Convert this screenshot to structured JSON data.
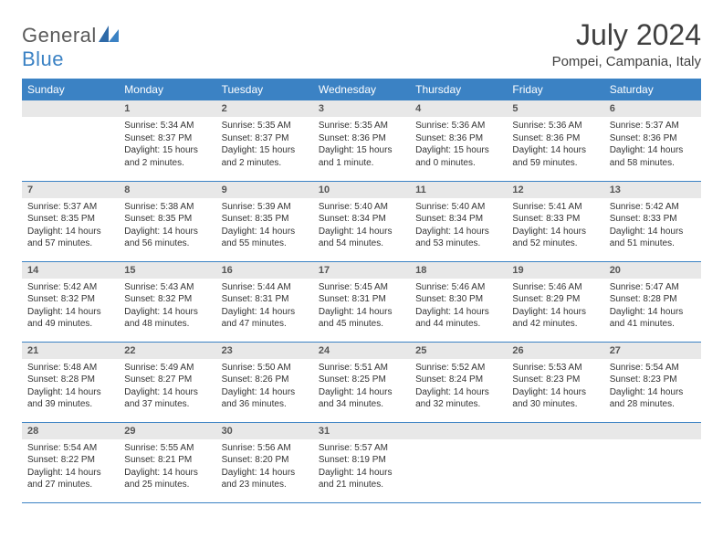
{
  "brand": {
    "part1": "General",
    "part2": "Blue"
  },
  "title": "July 2024",
  "location": "Pompei, Campania, Italy",
  "colors": {
    "header_bg": "#3b82c4",
    "header_text": "#ffffff",
    "daynum_bg": "#e8e8e8",
    "text": "#333333",
    "title_text": "#404040"
  },
  "typography": {
    "title_fontsize": 32,
    "location_fontsize": 15,
    "dow_fontsize": 12,
    "cell_fontsize": 10
  },
  "days_of_week": [
    "Sunday",
    "Monday",
    "Tuesday",
    "Wednesday",
    "Thursday",
    "Friday",
    "Saturday"
  ],
  "weeks": [
    [
      {
        "num": "",
        "sunrise": "",
        "sunset": "",
        "daylight": ""
      },
      {
        "num": "1",
        "sunrise": "Sunrise: 5:34 AM",
        "sunset": "Sunset: 8:37 PM",
        "daylight": "Daylight: 15 hours and 2 minutes."
      },
      {
        "num": "2",
        "sunrise": "Sunrise: 5:35 AM",
        "sunset": "Sunset: 8:37 PM",
        "daylight": "Daylight: 15 hours and 2 minutes."
      },
      {
        "num": "3",
        "sunrise": "Sunrise: 5:35 AM",
        "sunset": "Sunset: 8:36 PM",
        "daylight": "Daylight: 15 hours and 1 minute."
      },
      {
        "num": "4",
        "sunrise": "Sunrise: 5:36 AM",
        "sunset": "Sunset: 8:36 PM",
        "daylight": "Daylight: 15 hours and 0 minutes."
      },
      {
        "num": "5",
        "sunrise": "Sunrise: 5:36 AM",
        "sunset": "Sunset: 8:36 PM",
        "daylight": "Daylight: 14 hours and 59 minutes."
      },
      {
        "num": "6",
        "sunrise": "Sunrise: 5:37 AM",
        "sunset": "Sunset: 8:36 PM",
        "daylight": "Daylight: 14 hours and 58 minutes."
      }
    ],
    [
      {
        "num": "7",
        "sunrise": "Sunrise: 5:37 AM",
        "sunset": "Sunset: 8:35 PM",
        "daylight": "Daylight: 14 hours and 57 minutes."
      },
      {
        "num": "8",
        "sunrise": "Sunrise: 5:38 AM",
        "sunset": "Sunset: 8:35 PM",
        "daylight": "Daylight: 14 hours and 56 minutes."
      },
      {
        "num": "9",
        "sunrise": "Sunrise: 5:39 AM",
        "sunset": "Sunset: 8:35 PM",
        "daylight": "Daylight: 14 hours and 55 minutes."
      },
      {
        "num": "10",
        "sunrise": "Sunrise: 5:40 AM",
        "sunset": "Sunset: 8:34 PM",
        "daylight": "Daylight: 14 hours and 54 minutes."
      },
      {
        "num": "11",
        "sunrise": "Sunrise: 5:40 AM",
        "sunset": "Sunset: 8:34 PM",
        "daylight": "Daylight: 14 hours and 53 minutes."
      },
      {
        "num": "12",
        "sunrise": "Sunrise: 5:41 AM",
        "sunset": "Sunset: 8:33 PM",
        "daylight": "Daylight: 14 hours and 52 minutes."
      },
      {
        "num": "13",
        "sunrise": "Sunrise: 5:42 AM",
        "sunset": "Sunset: 8:33 PM",
        "daylight": "Daylight: 14 hours and 51 minutes."
      }
    ],
    [
      {
        "num": "14",
        "sunrise": "Sunrise: 5:42 AM",
        "sunset": "Sunset: 8:32 PM",
        "daylight": "Daylight: 14 hours and 49 minutes."
      },
      {
        "num": "15",
        "sunrise": "Sunrise: 5:43 AM",
        "sunset": "Sunset: 8:32 PM",
        "daylight": "Daylight: 14 hours and 48 minutes."
      },
      {
        "num": "16",
        "sunrise": "Sunrise: 5:44 AM",
        "sunset": "Sunset: 8:31 PM",
        "daylight": "Daylight: 14 hours and 47 minutes."
      },
      {
        "num": "17",
        "sunrise": "Sunrise: 5:45 AM",
        "sunset": "Sunset: 8:31 PM",
        "daylight": "Daylight: 14 hours and 45 minutes."
      },
      {
        "num": "18",
        "sunrise": "Sunrise: 5:46 AM",
        "sunset": "Sunset: 8:30 PM",
        "daylight": "Daylight: 14 hours and 44 minutes."
      },
      {
        "num": "19",
        "sunrise": "Sunrise: 5:46 AM",
        "sunset": "Sunset: 8:29 PM",
        "daylight": "Daylight: 14 hours and 42 minutes."
      },
      {
        "num": "20",
        "sunrise": "Sunrise: 5:47 AM",
        "sunset": "Sunset: 8:28 PM",
        "daylight": "Daylight: 14 hours and 41 minutes."
      }
    ],
    [
      {
        "num": "21",
        "sunrise": "Sunrise: 5:48 AM",
        "sunset": "Sunset: 8:28 PM",
        "daylight": "Daylight: 14 hours and 39 minutes."
      },
      {
        "num": "22",
        "sunrise": "Sunrise: 5:49 AM",
        "sunset": "Sunset: 8:27 PM",
        "daylight": "Daylight: 14 hours and 37 minutes."
      },
      {
        "num": "23",
        "sunrise": "Sunrise: 5:50 AM",
        "sunset": "Sunset: 8:26 PM",
        "daylight": "Daylight: 14 hours and 36 minutes."
      },
      {
        "num": "24",
        "sunrise": "Sunrise: 5:51 AM",
        "sunset": "Sunset: 8:25 PM",
        "daylight": "Daylight: 14 hours and 34 minutes."
      },
      {
        "num": "25",
        "sunrise": "Sunrise: 5:52 AM",
        "sunset": "Sunset: 8:24 PM",
        "daylight": "Daylight: 14 hours and 32 minutes."
      },
      {
        "num": "26",
        "sunrise": "Sunrise: 5:53 AM",
        "sunset": "Sunset: 8:23 PM",
        "daylight": "Daylight: 14 hours and 30 minutes."
      },
      {
        "num": "27",
        "sunrise": "Sunrise: 5:54 AM",
        "sunset": "Sunset: 8:23 PM",
        "daylight": "Daylight: 14 hours and 28 minutes."
      }
    ],
    [
      {
        "num": "28",
        "sunrise": "Sunrise: 5:54 AM",
        "sunset": "Sunset: 8:22 PM",
        "daylight": "Daylight: 14 hours and 27 minutes."
      },
      {
        "num": "29",
        "sunrise": "Sunrise: 5:55 AM",
        "sunset": "Sunset: 8:21 PM",
        "daylight": "Daylight: 14 hours and 25 minutes."
      },
      {
        "num": "30",
        "sunrise": "Sunrise: 5:56 AM",
        "sunset": "Sunset: 8:20 PM",
        "daylight": "Daylight: 14 hours and 23 minutes."
      },
      {
        "num": "31",
        "sunrise": "Sunrise: 5:57 AM",
        "sunset": "Sunset: 8:19 PM",
        "daylight": "Daylight: 14 hours and 21 minutes."
      },
      {
        "num": "",
        "sunrise": "",
        "sunset": "",
        "daylight": ""
      },
      {
        "num": "",
        "sunrise": "",
        "sunset": "",
        "daylight": ""
      },
      {
        "num": "",
        "sunrise": "",
        "sunset": "",
        "daylight": ""
      }
    ]
  ]
}
